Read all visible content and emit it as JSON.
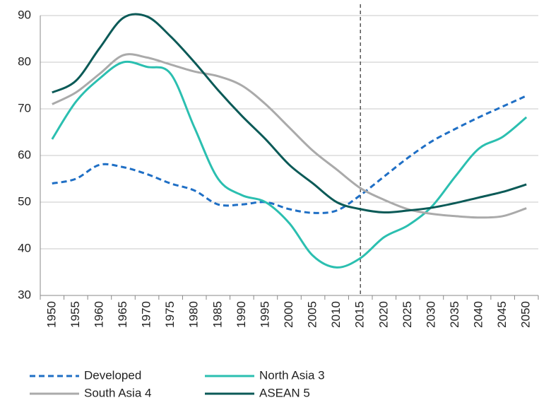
{
  "chart_data": {
    "type": "line",
    "categories": [
      "1950",
      "1955",
      "1960",
      "1965",
      "1970",
      "1975",
      "1980",
      "1985",
      "1990",
      "1995",
      "2000",
      "2005",
      "2010",
      "2015",
      "2020",
      "2025",
      "2030",
      "2035",
      "2040",
      "2045",
      "2050"
    ],
    "series": [
      {
        "name": "Developed",
        "color": "#1f6fc5",
        "dashed": true,
        "values": [
          54,
          55,
          58,
          57.5,
          56,
          54,
          52.5,
          49.5,
          49.5,
          50,
          48.5,
          47.7,
          48.2,
          51.5,
          55.5,
          59.5,
          63,
          65.7,
          68.2,
          70.5,
          72.8
        ]
      },
      {
        "name": "North Asia 3",
        "color": "#2bbfb0",
        "dashed": false,
        "values": [
          63.5,
          71.5,
          76.5,
          80,
          79,
          77.5,
          66,
          55,
          51.5,
          50,
          45.5,
          38.5,
          36,
          38,
          42.5,
          45,
          49,
          55.5,
          61.5,
          64,
          68.2
        ]
      },
      {
        "name": "South Asia 4",
        "color": "#aaaaaa",
        "dashed": false,
        "values": [
          71,
          73.5,
          77.5,
          81.5,
          81,
          79.5,
          78,
          77,
          75,
          71,
          66,
          61,
          57,
          53,
          50.5,
          48.5,
          47.5,
          47,
          46.7,
          47,
          48.7
        ]
      },
      {
        "name": "ASEAN 5",
        "color": "#0b5a57",
        "dashed": false,
        "values": [
          73.5,
          76,
          83,
          89.5,
          89.8,
          85.5,
          80,
          74,
          68.5,
          63.5,
          58,
          54,
          50,
          48.5,
          47.8,
          48.2,
          48.8,
          49.8,
          51,
          52.2,
          53.8
        ]
      }
    ],
    "reference_category": "2015",
    "ylim": [
      30,
      90
    ],
    "yticks": [
      30,
      40,
      50,
      60,
      70,
      80,
      90
    ],
    "grid": true,
    "legend": "bottom"
  }
}
